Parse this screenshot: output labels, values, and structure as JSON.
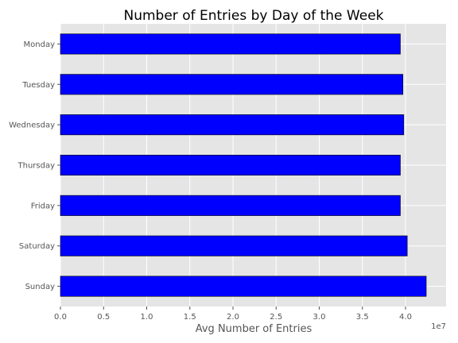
{
  "chart_data": {
    "type": "bar",
    "orientation": "horizontal",
    "title": "Number of Entries by Day of the Week",
    "xlabel": "Avg Number of Entries",
    "ylabel": "",
    "axis_offset_label": "1e7",
    "categories": [
      "Monday",
      "Tuesday",
      "Wednesday",
      "Thursday",
      "Friday",
      "Saturday",
      "Sunday"
    ],
    "values": [
      3.94,
      3.97,
      3.98,
      3.94,
      3.94,
      4.02,
      4.24
    ],
    "xlim": [
      0,
      4.47
    ],
    "x_ticks": [
      "0.0",
      "0.5",
      "1.0",
      "1.5",
      "2.0",
      "2.5",
      "3.0",
      "3.5",
      "4.0"
    ],
    "x_tick_values": [
      0.0,
      0.5,
      1.0,
      1.5,
      2.0,
      2.5,
      3.0,
      3.5,
      4.0
    ],
    "grid": true,
    "legend": "none",
    "colors": {
      "bar": "#0000ff",
      "bar_edge": "#000000",
      "plot_background": "#e5e5e5",
      "grid": "#ffffff"
    }
  }
}
